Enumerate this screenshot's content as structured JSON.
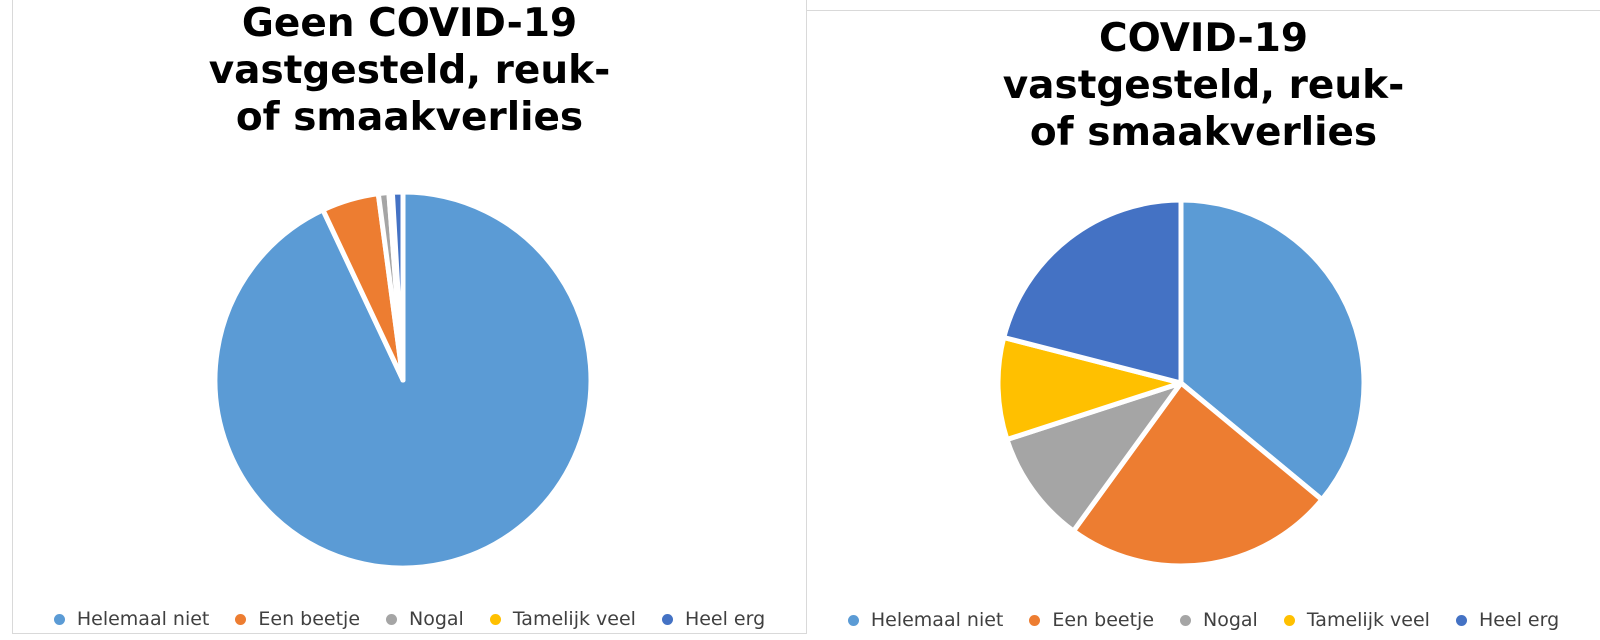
{
  "chart_data": [
    {
      "type": "pie",
      "title_lines": [
        "Geen COVID-19",
        "vastgesteld, reuk-",
        "of smaakverlies"
      ],
      "categories": [
        "Helemaal niet",
        "Een beetje",
        "Nogal",
        "Tamelijk veel",
        "Heel erg"
      ],
      "values": [
        93.0,
        4.9,
        0.9,
        0.3,
        0.9
      ],
      "colors": [
        "#5B9BD5",
        "#ED7D31",
        "#A5A5A5",
        "#FFC000",
        "#4472C4"
      ],
      "legend_position": "bottom"
    },
    {
      "type": "pie",
      "title_lines": [
        "COVID-19",
        "vastgesteld, reuk-",
        "of smaakverlies"
      ],
      "categories": [
        "Helemaal niet",
        "Een beetje",
        "Nogal",
        "Tamelijk veel",
        "Heel erg"
      ],
      "values": [
        36.0,
        24.0,
        10.0,
        9.0,
        21.0
      ],
      "colors": [
        "#5B9BD5",
        "#ED7D31",
        "#A5A5A5",
        "#FFC000",
        "#4472C4"
      ],
      "legend_position": "bottom"
    }
  ]
}
